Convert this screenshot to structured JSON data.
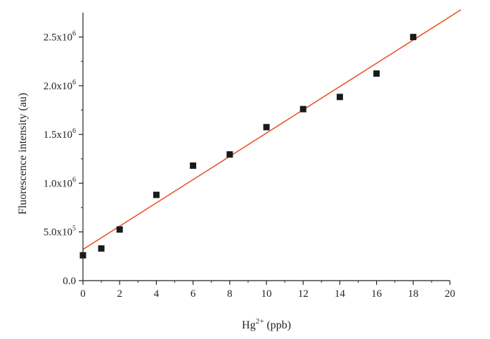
{
  "chart_data": {
    "type": "scatter",
    "xlabel": "Hg",
    "xlabel_sup": "2+",
    "xlabel_unit": " (ppb)",
    "ylabel": "Fluorescence intensity (au)",
    "xlim": [
      0,
      20
    ],
    "ylim": [
      0,
      2750000
    ],
    "x_ticks": [
      {
        "value": 0,
        "label": "0"
      },
      {
        "value": 2,
        "label": "2"
      },
      {
        "value": 4,
        "label": "4"
      },
      {
        "value": 6,
        "label": "6"
      },
      {
        "value": 8,
        "label": "8"
      },
      {
        "value": 10,
        "label": "10"
      },
      {
        "value": 12,
        "label": "12"
      },
      {
        "value": 14,
        "label": "14"
      },
      {
        "value": 16,
        "label": "16"
      },
      {
        "value": 18,
        "label": "18"
      },
      {
        "value": 20,
        "label": "20"
      }
    ],
    "y_ticks": [
      {
        "value": 0,
        "label": "0.0",
        "sup": ""
      },
      {
        "value": 500000,
        "label": "5.0x10",
        "sup": "5"
      },
      {
        "value": 1000000,
        "label": "1.0x10",
        "sup": "6"
      },
      {
        "value": 1500000,
        "label": "1.5x10",
        "sup": "6"
      },
      {
        "value": 2000000,
        "label": "2.0x10",
        "sup": "6"
      },
      {
        "value": 2500000,
        "label": "2.5x10",
        "sup": "6"
      }
    ],
    "series": [
      {
        "marker": "square",
        "color": "#1a1a1a",
        "x": [
          0,
          1,
          2,
          4,
          6,
          8,
          10,
          12,
          14,
          16,
          18
        ],
        "y": [
          260000,
          330000,
          525000,
          880000,
          1180000,
          1295000,
          1575000,
          1760000,
          1885000,
          2125000,
          2500000
        ]
      }
    ],
    "fit_line": {
      "color": "#e8562a",
      "x": [
        0,
        20.6
      ],
      "y": [
        320000,
        2780000
      ]
    },
    "grid": false,
    "legend": "none"
  }
}
